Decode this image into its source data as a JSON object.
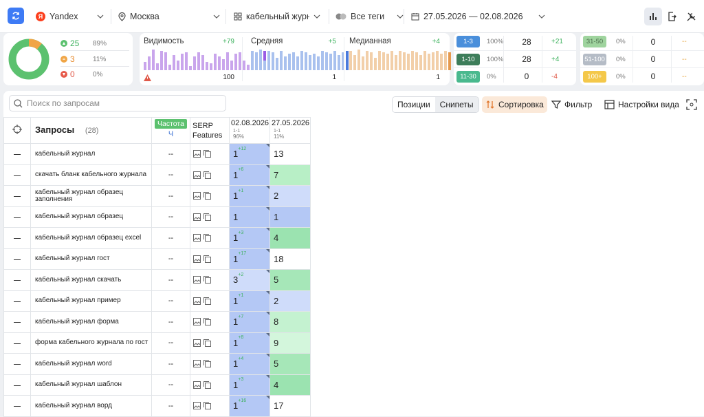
{
  "topbar": {
    "engine": "Yandex",
    "region": "Москва",
    "project": "кабельный журнал",
    "tags": "Все теги",
    "date_range": "27.05.2026 — 02.08.2026"
  },
  "summary": {
    "up": {
      "count": "25",
      "pct": "89%"
    },
    "same": {
      "count": "3",
      "pct": "11%"
    },
    "down": {
      "count": "0",
      "pct": "0%"
    },
    "colors": {
      "up": "#5cc16f",
      "same": "#f0a546",
      "down": "#e65a4a"
    }
  },
  "metrics": [
    {
      "label": "Видимость",
      "delta": "+79",
      "value": "100",
      "color": "#c9a5ec",
      "accent": "#9b5de5"
    },
    {
      "label": "Средняя",
      "delta": "+5",
      "value": "1",
      "color": "#a9c1ee",
      "accent": "#4b7bdc"
    },
    {
      "label": "Медианная",
      "delta": "+4",
      "value": "1",
      "color": "#f2cfa9",
      "accent": "#e59a4f"
    }
  ],
  "groups_left": [
    {
      "label": "1-3",
      "pct": "100%",
      "value": "28",
      "delta": "+21",
      "color": "#4a8fdb",
      "delta_color": "#3cb15d"
    },
    {
      "label": "1-10",
      "pct": "100%",
      "value": "28",
      "delta": "+4",
      "color": "#3d7d5a",
      "delta_color": "#3cb15d"
    },
    {
      "label": "11-30",
      "pct": "0%",
      "value": "0",
      "delta": "-4",
      "color": "#49b98e",
      "delta_color": "#e05a4a"
    }
  ],
  "groups_right": [
    {
      "label": "31-50",
      "pct": "0%",
      "value": "0",
      "delta": "--",
      "color": "#9fd49e"
    },
    {
      "label": "51-100",
      "pct": "0%",
      "value": "0",
      "delta": "--",
      "color": "#b5bcc6"
    },
    {
      "label": "100+",
      "pct": "0%",
      "value": "0",
      "delta": "--",
      "color": "#f4c84a"
    }
  ],
  "toolbar": {
    "search_placeholder": "Поиск по запросам",
    "tab_positions": "Позиции",
    "tab_snippets": "Снипеты",
    "sort": "Сортировка",
    "filter": "Фильтр",
    "view_settings": "Настройки вида"
  },
  "table": {
    "queries_header": "Запросы",
    "queries_count": "(28)",
    "freq_header": "Частота",
    "freq_sub": "Ч",
    "serp_header_1": "SERP",
    "serp_header_2": "Features",
    "date1": "02.08.2026",
    "date1_range": "1-1",
    "date1_pct": "96%",
    "date2": "27.05.2026",
    "date2_range": "1-1",
    "date2_pct": "11%",
    "rows": [
      {
        "query": "кабельный журнал",
        "freq": "--",
        "p1": "1",
        "d1": "+12",
        "p2": "13",
        "c2": "#ffffff"
      },
      {
        "query": "скачать бланк кабельного журнала",
        "freq": "--",
        "p1": "1",
        "d1": "+6",
        "p2": "7",
        "c2": "#b8efc6"
      },
      {
        "query": "кабельный журнал образец заполнения",
        "freq": "--",
        "p1": "1",
        "d1": "+1",
        "p2": "2",
        "c2": "#cfdcfa"
      },
      {
        "query": "кабельный журнал образец",
        "freq": "--",
        "p1": "1",
        "d1": "",
        "p2": "1",
        "c2": "#b4c8f5"
      },
      {
        "query": "кабельный журнал образец excel",
        "freq": "--",
        "p1": "1",
        "d1": "+3",
        "p2": "4",
        "c2": "#9be3b0"
      },
      {
        "query": "кабельный журнал гост",
        "freq": "--",
        "p1": "1",
        "d1": "+17",
        "p2": "18",
        "c2": "#ffffff"
      },
      {
        "query": "кабельный журнал скачать",
        "freq": "--",
        "p1": "3",
        "d1": "+2",
        "p2": "5",
        "c2": "#a6e7b8"
      },
      {
        "query": "кабельный журнал пример",
        "freq": "--",
        "p1": "1",
        "d1": "+1",
        "p2": "2",
        "c2": "#cfdcfa"
      },
      {
        "query": "кабельный журнал форма",
        "freq": "--",
        "p1": "1",
        "d1": "+7",
        "p2": "8",
        "c2": "#c4f2d0"
      },
      {
        "query": "форма кабельного журнала по гост",
        "freq": "--",
        "p1": "1",
        "d1": "+8",
        "p2": "9",
        "c2": "#d3f6dc"
      },
      {
        "query": "кабельный журнал word",
        "freq": "--",
        "p1": "1",
        "d1": "+4",
        "p2": "5",
        "c2": "#a6e7b8"
      },
      {
        "query": "кабельный журнал шаблон",
        "freq": "--",
        "p1": "1",
        "d1": "+3",
        "p2": "4",
        "c2": "#9be3b0"
      },
      {
        "query": "кабельный журнал ворд",
        "freq": "--",
        "p1": "1",
        "d1": "+16",
        "p2": "17",
        "c2": "#ffffff"
      }
    ]
  }
}
